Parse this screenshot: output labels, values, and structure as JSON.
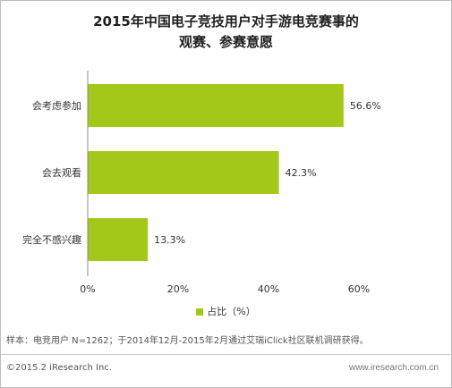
{
  "title_line1": "2015年中国电子竞技用户对手游电竞赛事的",
  "title_line2": "观赛、参赛意愿",
  "chart_data": {
    "type": "bar",
    "orientation": "horizontal",
    "categories": [
      "会考虑参加",
      "会去观看",
      "完全不感兴趣"
    ],
    "values": [
      56.6,
      42.3,
      13.3
    ],
    "value_labels": [
      "56.6%",
      "42.3%",
      "13.3%"
    ],
    "xlim": [
      0,
      70
    ],
    "x_ticks": [
      "0%",
      "20%",
      "40%",
      "60%"
    ],
    "x_tick_values": [
      0,
      20,
      40,
      60
    ],
    "bar_color": "#a4c81a",
    "grid": false,
    "legend_position": "bottom",
    "series": [
      {
        "name": "占比（%）",
        "values": [
          56.6,
          42.3,
          13.3
        ]
      }
    ]
  },
  "legend_label": "占比（%）",
  "note": "样本：电竞用户 N=1262；于2014年12月-2015年2月通过艾瑞iClick社区联机调研获得。",
  "footer_left": "©2015.2 iResearch Inc.",
  "footer_right": "www.iresearch.com.cn"
}
